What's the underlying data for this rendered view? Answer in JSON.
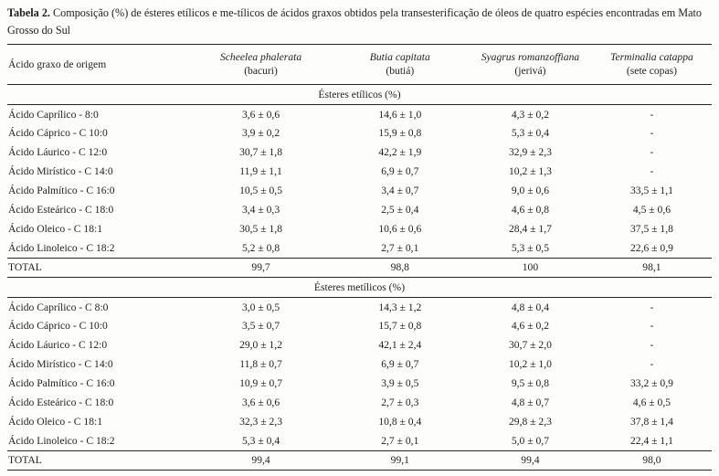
{
  "caption": {
    "label": "Tabela 2.",
    "text": " Composição (%) de ésteres etílicos e me-tílicos de ácidos graxos obtidos pela transesterificação de óleos de quatro espécies encontradas em Mato Grosso do Sul"
  },
  "table": {
    "row_header_label": "Ácido graxo de origem",
    "columns": [
      {
        "species": "Scheelea phalerata",
        "common": "(bacuri)"
      },
      {
        "species": "Butia capitata",
        "common": "(butiá)"
      },
      {
        "species": "Syagrus romanzoffiana",
        "common": "(jerivá)"
      },
      {
        "species": "Terminalia catappa",
        "common": "(sete copas)"
      }
    ],
    "sections": [
      {
        "header": "Ésteres etílicos (%)",
        "rows": [
          {
            "label": "Ácido Caprílico - 8:0",
            "values": [
              "3,6 ± 0,6",
              "14,6 ± 1,0",
              "4,3 ± 0,2",
              "-"
            ]
          },
          {
            "label": "Ácido Cáprico - C 10:0",
            "values": [
              "3,9 ± 0,2",
              "15,9 ± 0,8",
              "5,3 ± 0,4",
              "-"
            ]
          },
          {
            "label": "Ácido Láurico - C 12:0",
            "values": [
              "30,7 ± 1,8",
              "42,2 ± 1,9",
              "32,9 ± 2,3",
              "-"
            ]
          },
          {
            "label": "Ácido Mirístico - C 14:0",
            "values": [
              "11,9 ± 1,1",
              "6,9 ± 0,7",
              "10,2 ± 1,3",
              "-"
            ]
          },
          {
            "label": "Ácido Palmítico - C 16:0",
            "values": [
              "10,5 ± 0,5",
              "3,4 ± 0,7",
              "9,0 ± 0,6",
              "33,5 ± 1,1"
            ]
          },
          {
            "label": "Ácido Esteárico - C 18:0",
            "values": [
              "3,4 ± 0,3",
              "2,5 ± 0,4",
              "4,6 ± 0,8",
              "4,5 ± 0,6"
            ]
          },
          {
            "label": "Ácido Oleico - C 18:1",
            "values": [
              "30,5 ± 1,8",
              "10,6 ± 0,6",
              "28,4 ± 1,7",
              "37,5 ± 1,8"
            ]
          },
          {
            "label": "Ácido Linoleico - C 18:2",
            "values": [
              "5,2 ± 0,8",
              "2,7 ± 0,1",
              "5,3 ± 0,5",
              "22,6 ± 0,9"
            ]
          }
        ],
        "total_label": "TOTAL",
        "total": [
          "99,7",
          "98,8",
          "100",
          "98,1"
        ]
      },
      {
        "header": "Ésteres metílicos (%)",
        "rows": [
          {
            "label": "Ácido Caprílico - C 8:0",
            "values": [
              "3,0 ± 0,5",
              "14,3 ± 1,2",
              "4,8 ± 0,4",
              "-"
            ]
          },
          {
            "label": "Ácido Cáprico - C 10:0",
            "values": [
              "3,5 ± 0,7",
              "15,7 ± 0,8",
              "4,6 ± 0,2",
              "-"
            ]
          },
          {
            "label": "Ácido Láurico - C 12:0",
            "values": [
              "29,0 ± 1,2",
              "42,1 ± 2,4",
              "30,7 ± 2,0",
              "-"
            ]
          },
          {
            "label": "Ácido Mirístico - C 14:0",
            "values": [
              "11,8 ± 0,7",
              "6,9 ± 0,7",
              "10,2 ± 1,0",
              "-"
            ]
          },
          {
            "label": "Ácido Palmítico - C 16:0",
            "values": [
              "10,9 ± 0,7",
              "3,9 ± 0,5",
              "9,5 ± 0,8",
              "33,2 ± 0,9"
            ]
          },
          {
            "label": "Ácido Esteárico - C 18:0",
            "values": [
              "3,6 ± 0,6",
              "2,7 ± 0,3",
              "4,8 ± 0,7",
              "4,6 ± 0,5"
            ]
          },
          {
            "label": "Ácido Oleico - C 18:1",
            "values": [
              "32,3 ± 2,3",
              "10,8 ± 0,4",
              "29,8 ± 2,3",
              "37,8 ± 1,4"
            ]
          },
          {
            "label": "Ácido Linoleico - C 18:2",
            "values": [
              "5,3 ± 0,4",
              "2,7 ± 0,1",
              "5,0 ± 0,7",
              "22,4 ± 1,1"
            ]
          }
        ],
        "total_label": "TOTAL",
        "total": [
          "99,4",
          "99,1",
          "99,4",
          "98,0"
        ]
      }
    ]
  },
  "colors": {
    "ink": "#1e1e1e",
    "rule": "#262626",
    "background": "#fdfdfc"
  }
}
